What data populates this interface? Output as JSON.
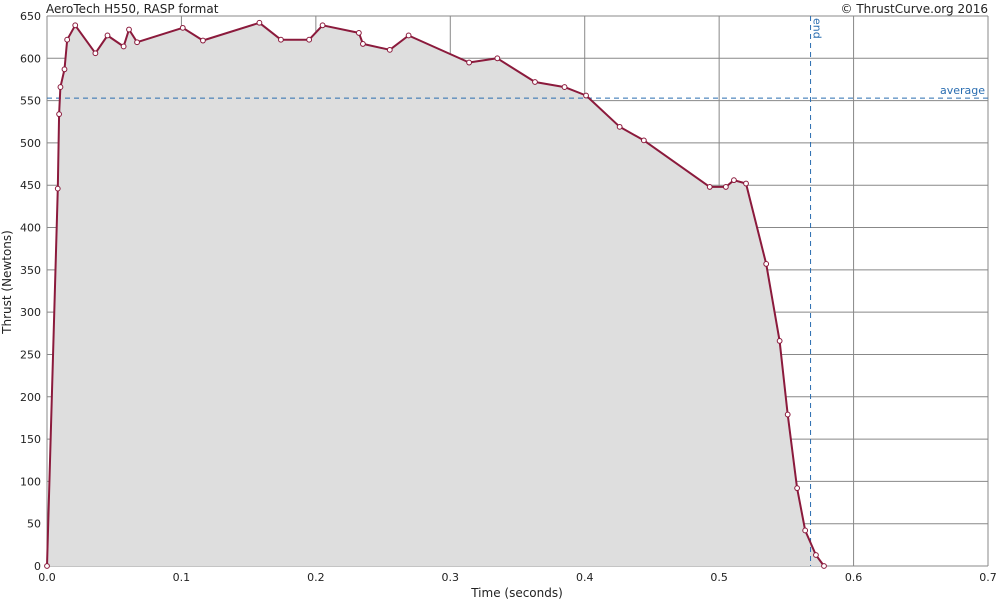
{
  "chart_data": {
    "type": "area",
    "title": "AeroTech H550, RASP format",
    "credit": "© ThrustCurve.org 2016",
    "xlabel": "Time (seconds)",
    "ylabel": "Thrust (Newtons)",
    "xlim": [
      0,
      0.7
    ],
    "ylim": [
      0,
      650
    ],
    "x_ticks": [
      0.0,
      0.1,
      0.2,
      0.3,
      0.4,
      0.5,
      0.6,
      0.7
    ],
    "x_tick_labels": [
      "0.0",
      "0.1",
      "0.2",
      "0.3",
      "0.4",
      "0.5",
      "0.6",
      "0.7"
    ],
    "y_ticks": [
      0,
      50,
      100,
      150,
      200,
      250,
      300,
      350,
      400,
      450,
      500,
      550,
      600,
      650
    ],
    "y_tick_labels": [
      "0",
      "50",
      "100",
      "150",
      "200",
      "250",
      "300",
      "350",
      "400",
      "450",
      "500",
      "550",
      "600",
      "650"
    ],
    "grid": true,
    "colors": {
      "line": "#8b1a3c",
      "fill": "#dedede",
      "reference": "#2a6db0",
      "grid": "#888888"
    },
    "series": [
      {
        "x": [
          0.0,
          0.008,
          0.009,
          0.01,
          0.013,
          0.015,
          0.021,
          0.036,
          0.045,
          0.057,
          0.061,
          0.067,
          0.101,
          0.116,
          0.158,
          0.174,
          0.195,
          0.205,
          0.232,
          0.235,
          0.255,
          0.269,
          0.314,
          0.335,
          0.363,
          0.385,
          0.401,
          0.426,
          0.444,
          0.493,
          0.505,
          0.511,
          0.52,
          0.535,
          0.545,
          0.551,
          0.558,
          0.564,
          0.572,
          0.578
        ],
        "y": [
          0,
          446,
          534,
          566,
          587,
          622,
          639,
          606,
          627,
          614,
          634,
          619,
          636,
          621,
          642,
          622,
          622,
          639,
          630,
          617,
          610,
          627,
          595,
          600,
          572,
          566,
          556,
          519,
          503,
          448,
          448,
          456,
          452,
          357,
          266,
          179,
          92,
          42,
          13,
          0
        ]
      }
    ],
    "reference_lines": [
      {
        "orientation": "horizontal",
        "value": 553,
        "label": "average"
      },
      {
        "orientation": "vertical",
        "value": 0.568,
        "label": "end"
      }
    ]
  }
}
